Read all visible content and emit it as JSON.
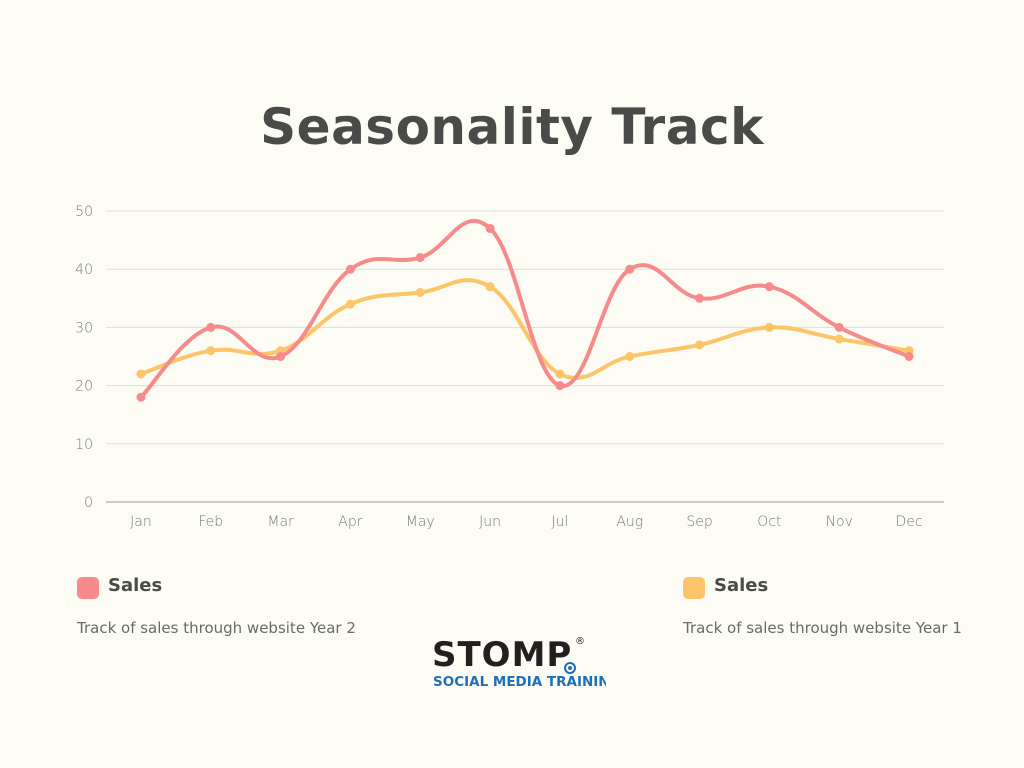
{
  "chart_data": {
    "type": "line",
    "title": "Seasonality Track",
    "categories": [
      "Jan",
      "Feb",
      "Mar",
      "Apr",
      "May",
      "Jun",
      "Jul",
      "Aug",
      "Sep",
      "Oct",
      "Nov",
      "Dec"
    ],
    "ylim": [
      0,
      50
    ],
    "yticks": [
      "0",
      "10",
      "20",
      "30",
      "40",
      "50"
    ],
    "grid": true,
    "legend_placement": "bottom",
    "series": [
      {
        "name": "Sales",
        "description": "Track of sales through website Year 2",
        "color": "#f78a8a",
        "values": [
          18,
          30,
          25,
          40,
          42,
          47,
          20,
          40,
          35,
          37,
          30,
          25
        ]
      },
      {
        "name": "Sales",
        "description": "Track of sales through website Year 1",
        "color": "#fcc56a",
        "values": [
          22,
          26,
          26,
          34,
          36,
          37,
          22,
          25,
          27,
          30,
          28,
          26
        ]
      }
    ]
  },
  "legend": [
    {
      "name": "Sales",
      "description": "Track of sales through website Year 2",
      "color": "#f78a8a"
    },
    {
      "name": "Sales",
      "description": "Track of sales through website Year 1",
      "color": "#fcc56a"
    }
  ],
  "logo": {
    "brand": "STOMP",
    "registered": "®",
    "tagline": "SOCIAL MEDIA TRAINING"
  }
}
